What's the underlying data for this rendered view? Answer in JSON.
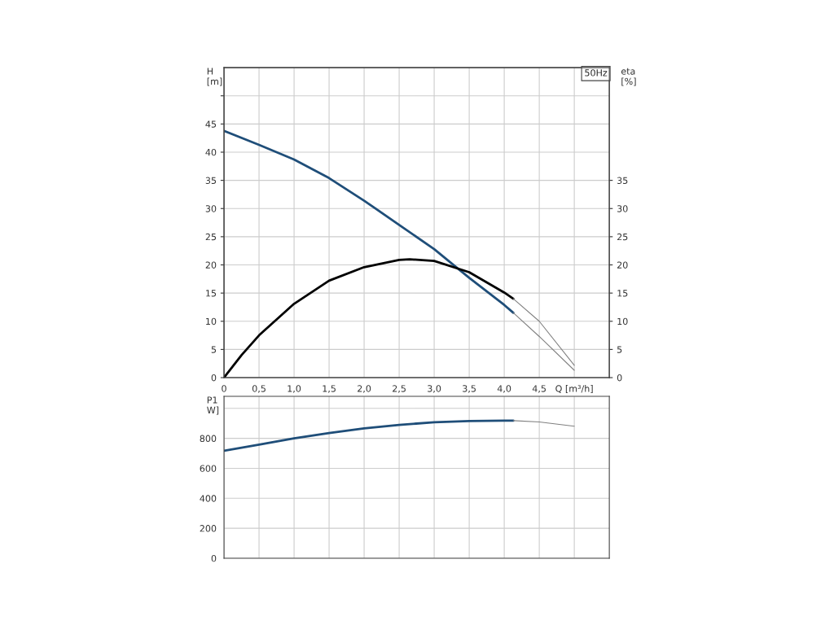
{
  "chart_data": [
    {
      "type": "line",
      "ylabel": "H\n[m]",
      "y2label": "eta\n[%]",
      "annotations": [
        "50Hz"
      ],
      "xlim": [
        0,
        5.5
      ],
      "xticks": [
        {
          "value": 0,
          "label": "0"
        },
        {
          "value": 0.5,
          "label": "0,5"
        },
        {
          "value": 1.0,
          "label": "1,0"
        },
        {
          "value": 1.5,
          "label": "1,5"
        },
        {
          "value": 2.0,
          "label": "2,0"
        },
        {
          "value": 2.5,
          "label": "2,5"
        },
        {
          "value": 3.0,
          "label": "3,0"
        },
        {
          "value": 3.5,
          "label": "3,5"
        },
        {
          "value": 4.0,
          "label": "4,0"
        },
        {
          "value": 4.5,
          "label": "4,5"
        },
        {
          "value": 5.0,
          "label": "Q [m³/h]"
        }
      ],
      "ylim": [
        0,
        55
      ],
      "yticks": [
        0,
        5,
        10,
        15,
        20,
        25,
        30,
        35,
        40,
        45,
        {
          "value": 50,
          "label": null
        }
      ],
      "y2lim": [
        0,
        55
      ],
      "y2ticks": [
        0,
        5,
        10,
        15,
        20,
        25,
        30,
        35
      ],
      "grid": true,
      "legend": false,
      "series": [
        {
          "color": "#1f4e79",
          "x": [
            0,
            0.5,
            1.0,
            1.5,
            2.0,
            2.5,
            3.0,
            3.5,
            4.0,
            4.13
          ],
          "values": [
            43.8,
            41.3,
            38.7,
            35.4,
            31.4,
            27.1,
            22.8,
            17.7,
            12.9,
            11.5
          ]
        },
        {
          "color": "#808080",
          "x": [
            4.13,
            4.5,
            5.0
          ],
          "values": [
            11.5,
            7.3,
            1.3
          ]
        },
        {
          "color": "#000000",
          "axis": "y2",
          "x": [
            0,
            0.25,
            0.5,
            1.0,
            1.5,
            2.0,
            2.5,
            2.65,
            3.0,
            3.5,
            4.0,
            4.13
          ],
          "values": [
            0,
            4,
            7.5,
            13.1,
            17.2,
            19.6,
            20.9,
            21.0,
            20.7,
            18.7,
            15.1,
            14.0
          ]
        },
        {
          "color": "#808080",
          "axis": "y2",
          "x": [
            4.13,
            4.5,
            5.0
          ],
          "values": [
            14.0,
            10.0,
            2.2
          ]
        }
      ]
    },
    {
      "type": "line",
      "ylabel": "P1\nW]",
      "tick_labels": "y",
      "xlim": [
        0,
        5.5
      ],
      "xticks": [
        0,
        0.5,
        1.0,
        1.5,
        2.0,
        2.5,
        3.0,
        3.5,
        4.0,
        4.5,
        5.0
      ],
      "ylim": [
        0,
        1080
      ],
      "yticks": [
        0,
        200,
        400,
        600,
        800,
        {
          "value": 1000,
          "label": null
        }
      ],
      "grid": true,
      "legend": false,
      "series": [
        {
          "color": "#1f4e79",
          "x": [
            0,
            0.5,
            1.0,
            1.5,
            2.0,
            2.5,
            3.0,
            3.5,
            4.0,
            4.13
          ],
          "values": [
            717,
            758,
            800,
            836,
            867,
            890,
            907,
            916,
            918,
            918
          ]
        },
        {
          "color": "#808080",
          "x": [
            4.13,
            4.5,
            5.0
          ],
          "values": [
            918,
            909,
            881
          ]
        }
      ]
    }
  ]
}
